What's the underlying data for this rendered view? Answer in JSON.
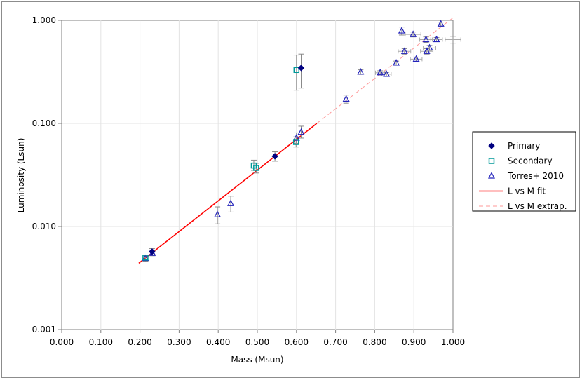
{
  "chart_data": {
    "type": "scatter",
    "title": "",
    "xlabel": "Mass (Msun)",
    "ylabel": "Luminosity (Lsun)",
    "xlim": [
      0.0,
      1.0
    ],
    "ylim": [
      0.001,
      1.0
    ],
    "y_scale": "log",
    "grid": true,
    "legend_position": "right",
    "x_ticks": [
      "0.000",
      "0.100",
      "0.200",
      "0.300",
      "0.400",
      "0.500",
      "0.600",
      "0.700",
      "0.800",
      "0.900",
      "1.000"
    ],
    "y_ticks": [
      "0.001",
      "0.010",
      "0.100",
      "1.000"
    ],
    "y_tick_values": [
      0.001,
      0.01,
      0.1,
      1.0
    ],
    "series": [
      {
        "name": "Primary",
        "marker": "diamond",
        "color": "#000080",
        "points": [
          {
            "x": 0.231,
            "y": 0.0057,
            "ylo": 0.0053,
            "yhi": 0.0061
          },
          {
            "x": 0.545,
            "y": 0.048,
            "ylo": 0.043,
            "yhi": 0.053
          },
          {
            "x": 0.612,
            "y": 0.345,
            "ylo": 0.22,
            "yhi": 0.47
          }
        ]
      },
      {
        "name": "Secondary",
        "marker": "square",
        "color": "#009999",
        "points": [
          {
            "x": 0.214,
            "y": 0.005,
            "ylo": 0.0047,
            "yhi": 0.0053
          },
          {
            "x": 0.491,
            "y": 0.039,
            "ylo": 0.035,
            "yhi": 0.044
          },
          {
            "x": 0.497,
            "y": 0.037,
            "ylo": 0.033,
            "yhi": 0.041
          },
          {
            "x": 0.599,
            "y": 0.066,
            "ylo": 0.059,
            "yhi": 0.074
          },
          {
            "x": 0.6,
            "y": 0.33,
            "ylo": 0.21,
            "yhi": 0.46
          }
        ]
      },
      {
        "name": "Torres+ 2010",
        "marker": "triangle",
        "color": "#2222bb",
        "points": [
          {
            "x": 0.214,
            "y": 0.0049,
            "ylo": 0.0046,
            "yhi": 0.0052
          },
          {
            "x": 0.232,
            "y": 0.0055,
            "ylo": 0.0052,
            "yhi": 0.0058
          },
          {
            "x": 0.398,
            "y": 0.013,
            "ylo": 0.0106,
            "yhi": 0.0155
          },
          {
            "x": 0.432,
            "y": 0.0167,
            "ylo": 0.0138,
            "yhi": 0.0197
          },
          {
            "x": 0.6,
            "y": 0.072,
            "ylo": 0.064,
            "yhi": 0.081
          },
          {
            "x": 0.612,
            "y": 0.082,
            "ylo": 0.072,
            "yhi": 0.094
          },
          {
            "x": 0.727,
            "y": 0.172,
            "ylo": 0.157,
            "yhi": 0.188
          },
          {
            "x": 0.764,
            "y": 0.315,
            "ylo": 0.299,
            "yhi": 0.331
          },
          {
            "x": 0.814,
            "y": 0.31,
            "ylo": 0.296,
            "yhi": 0.324,
            "xerr": 0.012
          },
          {
            "x": 0.83,
            "y": 0.3,
            "ylo": 0.287,
            "yhi": 0.313,
            "xerr": 0.012
          },
          {
            "x": 0.855,
            "y": 0.385,
            "ylo": 0.368,
            "yhi": 0.402
          },
          {
            "x": 0.869,
            "y": 0.79,
            "ylo": 0.72,
            "yhi": 0.86
          },
          {
            "x": 0.876,
            "y": 0.5,
            "ylo": 0.47,
            "yhi": 0.53,
            "xerr": 0.016
          },
          {
            "x": 0.898,
            "y": 0.73,
            "ylo": 0.69,
            "yhi": 0.77,
            "xerr": 0.02
          },
          {
            "x": 0.906,
            "y": 0.42,
            "ylo": 0.4,
            "yhi": 0.44,
            "xerr": 0.015
          },
          {
            "x": 0.931,
            "y": 0.65,
            "ylo": 0.61,
            "yhi": 0.69,
            "xerr": 0.016
          },
          {
            "x": 0.933,
            "y": 0.5,
            "ylo": 0.47,
            "yhi": 0.53,
            "xerr": 0.016
          },
          {
            "x": 0.94,
            "y": 0.54,
            "ylo": 0.51,
            "yhi": 0.57,
            "xerr": 0.016
          },
          {
            "x": 0.958,
            "y": 0.65,
            "ylo": 0.62,
            "yhi": 0.68,
            "xerr": 0.015
          },
          {
            "x": 0.969,
            "y": 0.92,
            "ylo": 0.88,
            "yhi": 0.96
          }
        ]
      },
      {
        "name": "L vs M fit",
        "kind": "line",
        "color": "#ff0000",
        "dash": false,
        "x": [
          0.197,
          0.652
        ],
        "y": [
          0.0044,
          0.1
        ]
      },
      {
        "name": "L vs M extrap.",
        "kind": "line",
        "color": "#ff9999",
        "dash": true,
        "x": [
          0.652,
          1.0
        ],
        "y": [
          0.1,
          1.06
        ]
      }
    ],
    "outlier_right": {
      "x": 1.0,
      "y": 0.65,
      "ylo": 0.6,
      "yhi": 0.7,
      "xerr": 0.02
    }
  },
  "legend": {
    "items": [
      "Primary",
      "Secondary",
      "Torres+ 2010",
      "L vs M fit",
      "L vs M extrap."
    ]
  }
}
